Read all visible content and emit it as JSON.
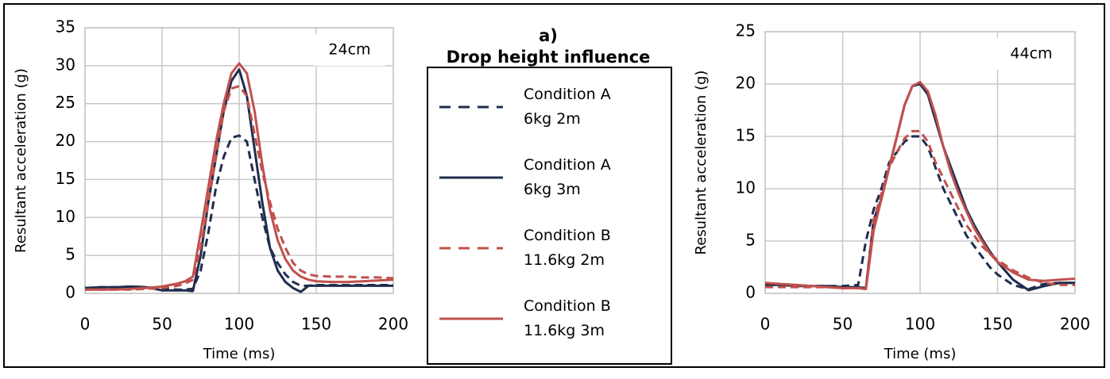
{
  "title": "a)",
  "subtitle": "Drop height influence",
  "chart_data": [
    {
      "type": "line",
      "annotation": "24cm",
      "xlabel": "Time (ms)",
      "ylabel": "Resultant acceleration (g)",
      "x": [
        0,
        10,
        20,
        30,
        40,
        50,
        60,
        65,
        70,
        75,
        80,
        85,
        90,
        95,
        100,
        105,
        110,
        115,
        120,
        125,
        130,
        135,
        140,
        145,
        150,
        160,
        170,
        180,
        190,
        200
      ],
      "xlim": [
        0,
        200
      ],
      "xticks": [
        0,
        50,
        100,
        150,
        200
      ],
      "ylim": [
        0,
        35
      ],
      "yticks": [
        0,
        5,
        10,
        15,
        20,
        25,
        30,
        35
      ],
      "grid": true,
      "series": [
        {
          "name": "Condition A 6kg 2m",
          "color": "#1f2d4e",
          "style": "dashed",
          "values": [
            0.7,
            0.8,
            0.8,
            0.9,
            0.8,
            0.6,
            0.5,
            0.5,
            0.6,
            3,
            8,
            14,
            18,
            20.5,
            20.8,
            20,
            15,
            10,
            6,
            4,
            2.5,
            1.5,
            1,
            1,
            1.1,
            1.1,
            1.1,
            1.1,
            1.1,
            1.1
          ]
        },
        {
          "name": "Condition A 6kg 3m",
          "color": "#1f2d4e",
          "style": "solid",
          "values": [
            0.7,
            0.8,
            0.8,
            0.9,
            0.8,
            0.4,
            0.4,
            0.4,
            0.3,
            5,
            12,
            18,
            24,
            28,
            29.5,
            26,
            19,
            12,
            6,
            3,
            1.5,
            0.7,
            0.2,
            1,
            1,
            1,
            1,
            1,
            1,
            1
          ]
        },
        {
          "name": "Condition B 11.6kg 2m",
          "color": "#c0504d",
          "style": "dashed",
          "values": [
            0.5,
            0.5,
            0.5,
            0.5,
            0.6,
            0.7,
            1,
            1.3,
            1.8,
            6,
            12,
            18,
            24,
            27,
            27.3,
            26,
            21,
            16,
            12,
            8.5,
            6,
            4,
            3,
            2.5,
            2.3,
            2.2,
            2.2,
            2.1,
            2.1,
            2
          ]
        },
        {
          "name": "Condition B 11.6kg 3m",
          "color": "#c0504d",
          "style": "solid",
          "values": [
            0.5,
            0.5,
            0.5,
            0.6,
            0.7,
            0.9,
            1.3,
            1.6,
            2.2,
            8,
            14,
            20,
            25,
            29,
            30.3,
            29,
            24,
            17,
            11,
            7,
            4.5,
            3,
            2.2,
            1.8,
            1.6,
            1.5,
            1.5,
            1.6,
            1.7,
            1.8
          ]
        }
      ]
    },
    {
      "type": "line",
      "annotation": "44cm",
      "xlabel": "Time (ms)",
      "ylabel": "Resultant acceleration (g)",
      "x": [
        0,
        10,
        20,
        30,
        40,
        50,
        60,
        65,
        70,
        75,
        80,
        85,
        90,
        95,
        100,
        105,
        110,
        115,
        120,
        125,
        130,
        135,
        140,
        145,
        150,
        160,
        170,
        180,
        190,
        200
      ],
      "xlim": [
        0,
        200
      ],
      "xticks": [
        0,
        50,
        100,
        150,
        200
      ],
      "ylim": [
        0,
        25
      ],
      "yticks": [
        0,
        5,
        10,
        15,
        20,
        25
      ],
      "grid": true,
      "series": [
        {
          "name": "Condition A 6kg 2m",
          "color": "#1f2d4e",
          "style": "dashed",
          "values": [
            0.8,
            0.8,
            0.8,
            0.7,
            0.7,
            0.7,
            0.8,
            5,
            8,
            10,
            12.5,
            13.5,
            14.5,
            15,
            15,
            14,
            12,
            10,
            8.5,
            7,
            5.5,
            4.5,
            3.5,
            2.5,
            1.8,
            0.8,
            0.4,
            0.9,
            1,
            1
          ]
        },
        {
          "name": "Condition A 6kg 3m",
          "color": "#1f2d4e",
          "style": "solid",
          "values": [
            0.8,
            0.8,
            0.7,
            0.7,
            0.7,
            0.6,
            0.6,
            0.5,
            7,
            9,
            12,
            15,
            18,
            19.8,
            20,
            19,
            16.5,
            14,
            12,
            10,
            8,
            6.5,
            5.2,
            4,
            3,
            1.3,
            0.3,
            0.7,
            1,
            1
          ]
        },
        {
          "name": "Condition B 11.6kg 2m",
          "color": "#c0504d",
          "style": "dashed",
          "values": [
            0.6,
            0.6,
            0.6,
            0.6,
            0.6,
            0.5,
            0.5,
            0.5,
            7,
            9.5,
            12,
            13.5,
            14.8,
            15.5,
            15.5,
            14.5,
            12.5,
            11,
            9.5,
            8,
            6.5,
            5.5,
            4.5,
            3.8,
            3.2,
            2.2,
            1.5,
            1,
            0.8,
            0.8
          ]
        },
        {
          "name": "Condition B 11.6kg 3m",
          "color": "#c0504d",
          "style": "solid",
          "values": [
            1,
            0.9,
            0.8,
            0.7,
            0.6,
            0.5,
            0.5,
            0.4,
            6,
            9,
            12,
            15,
            18,
            19.8,
            20.2,
            19.3,
            17,
            14,
            11.5,
            9.5,
            7.8,
            6.2,
            5,
            3.8,
            3,
            2,
            1.3,
            1.2,
            1.3,
            1.4
          ]
        }
      ]
    }
  ]
}
